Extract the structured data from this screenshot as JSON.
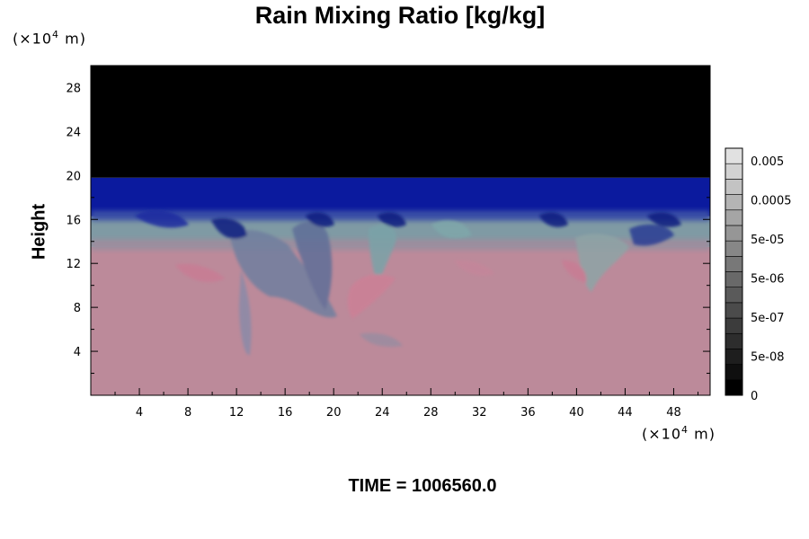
{
  "chart_data": {
    "type": "heatmap",
    "title": "Rain Mixing Ratio [kg/kg]",
    "xlabel": "",
    "ylabel": "Height",
    "x_unit": "(×10⁴ m)",
    "y_unit": "(×10⁴ m)",
    "xlim": [
      0,
      51
    ],
    "ylim": [
      0,
      30
    ],
    "x_ticks": [
      4,
      8,
      12,
      16,
      20,
      24,
      28,
      32,
      36,
      40,
      44,
      48
    ],
    "y_ticks": [
      4,
      8,
      12,
      16,
      20,
      24,
      28
    ],
    "colorbar": {
      "labels": [
        "0.005",
        "0.0005",
        "5e-05",
        "5e-06",
        "5e-07",
        "5e-08",
        "0"
      ],
      "levels": 16
    },
    "layers": [
      {
        "from": 0,
        "to": 13.5,
        "color": "#bc8a9a"
      },
      {
        "from": 13.5,
        "to": 16.3,
        "color": "#7f9aa4"
      },
      {
        "from": 16.3,
        "to": 19.8,
        "color": "#0b1a9e"
      },
      {
        "from": 19.8,
        "to": 30,
        "color": "#000000"
      }
    ],
    "footer": "TIME = 1006560.0"
  }
}
